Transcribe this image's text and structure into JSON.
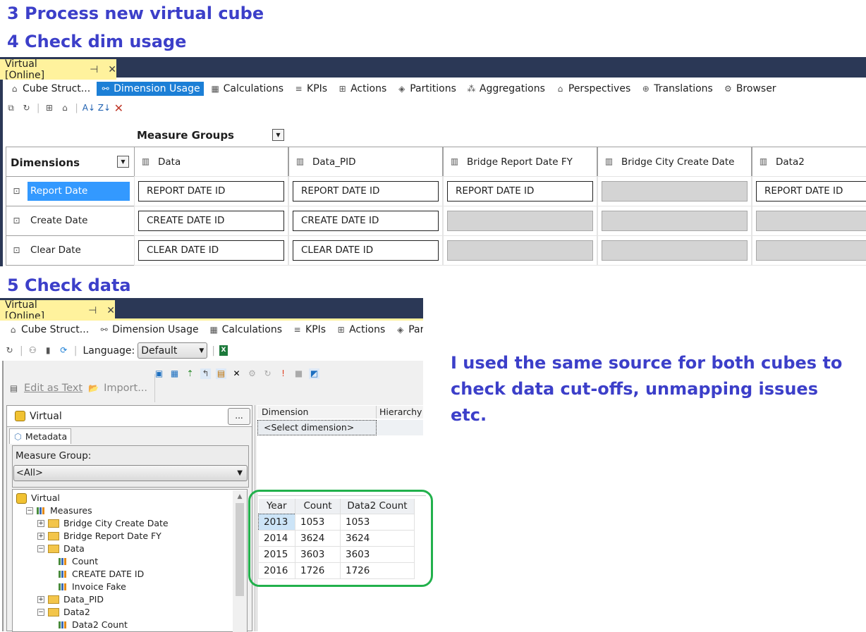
{
  "headings": {
    "step3": "3 Process new virtual cube",
    "step4": "4 Check dim usage",
    "step5": "5 Check data"
  },
  "annotation": "I used the same source for both cubes to check data cut-offs, unmapping issues etc.",
  "colors": {
    "heading": "#3c3fc9",
    "selected_tab": "#1c7fd6",
    "doc_tab": "#fff29d",
    "title_bar": "#2b3856",
    "highlight_border": "#22b14c"
  },
  "top_window": {
    "doc_tab": "Virtual [Online]",
    "tabs": [
      {
        "label": "Cube Struct..."
      },
      {
        "label": "Dimension Usage",
        "selected": true
      },
      {
        "label": "Calculations"
      },
      {
        "label": "KPIs"
      },
      {
        "label": "Actions"
      },
      {
        "label": "Partitions"
      },
      {
        "label": "Aggregations"
      },
      {
        "label": "Perspectives"
      },
      {
        "label": "Translations"
      },
      {
        "label": "Browser"
      }
    ],
    "grid": {
      "measure_groups_label": "Measure Groups",
      "dimensions_label": "Dimensions",
      "columns": [
        "Data",
        "Data_PID",
        "Bridge Report Date FY",
        "Bridge City Create Date",
        "Data2"
      ],
      "rows": [
        {
          "dimension": "Report Date",
          "selected": true,
          "cells": [
            "REPORT DATE ID",
            "REPORT DATE ID",
            "REPORT DATE ID",
            "",
            "REPORT DATE ID"
          ]
        },
        {
          "dimension": "Create Date",
          "cells": [
            "CREATE DATE ID",
            "CREATE DATE ID",
            "",
            "",
            ""
          ]
        },
        {
          "dimension": "Clear Date",
          "cells": [
            "CLEAR DATE ID",
            "CLEAR DATE ID",
            "",
            "",
            ""
          ]
        }
      ]
    }
  },
  "bottom_window": {
    "doc_tab": "Virtual [Online]",
    "tabs": [
      {
        "label": "Cube Struct..."
      },
      {
        "label": "Dimension Usage"
      },
      {
        "label": "Calculations"
      },
      {
        "label": "KPIs"
      },
      {
        "label": "Actions"
      },
      {
        "label": "Partitions"
      }
    ],
    "language_label": "Language:",
    "language_value": "Default",
    "edit_as_text": "Edit as Text",
    "import": "Import...",
    "cube_name": "Virtual",
    "ellipsis": "...",
    "metadata_tab": "Metadata",
    "measure_group_label": "Measure Group:",
    "measure_group_value": "<All>",
    "tree": [
      {
        "label": "Virtual",
        "type": "cube",
        "level": 0
      },
      {
        "label": "Measures",
        "type": "measures",
        "level": 1,
        "toggle": "−"
      },
      {
        "label": "Bridge City Create Date",
        "type": "folder",
        "level": 2,
        "toggle": "+"
      },
      {
        "label": "Bridge Report Date FY",
        "type": "folder",
        "level": 2,
        "toggle": "+"
      },
      {
        "label": "Data",
        "type": "folder",
        "level": 2,
        "toggle": "−"
      },
      {
        "label": "Count",
        "type": "measure",
        "level": 3
      },
      {
        "label": "CREATE DATE ID",
        "type": "measure",
        "level": 3
      },
      {
        "label": "Invoice Fake",
        "type": "measure",
        "level": 3
      },
      {
        "label": "Data_PID",
        "type": "folder",
        "level": 2,
        "toggle": "+"
      },
      {
        "label": "Data2",
        "type": "folder",
        "level": 2,
        "toggle": "−"
      },
      {
        "label": "Data2 Count",
        "type": "measure",
        "level": 3
      }
    ],
    "filter_grid": {
      "headers": [
        "Dimension",
        "Hierarchy"
      ],
      "placeholder": "<Select dimension>"
    },
    "results": {
      "headers": [
        "Year",
        "Count",
        "Data2 Count"
      ],
      "rows": [
        [
          "2013",
          "1053",
          "1053"
        ],
        [
          "2014",
          "3624",
          "3624"
        ],
        [
          "2015",
          "3603",
          "3603"
        ],
        [
          "2016",
          "1726",
          "1726"
        ]
      ]
    }
  }
}
